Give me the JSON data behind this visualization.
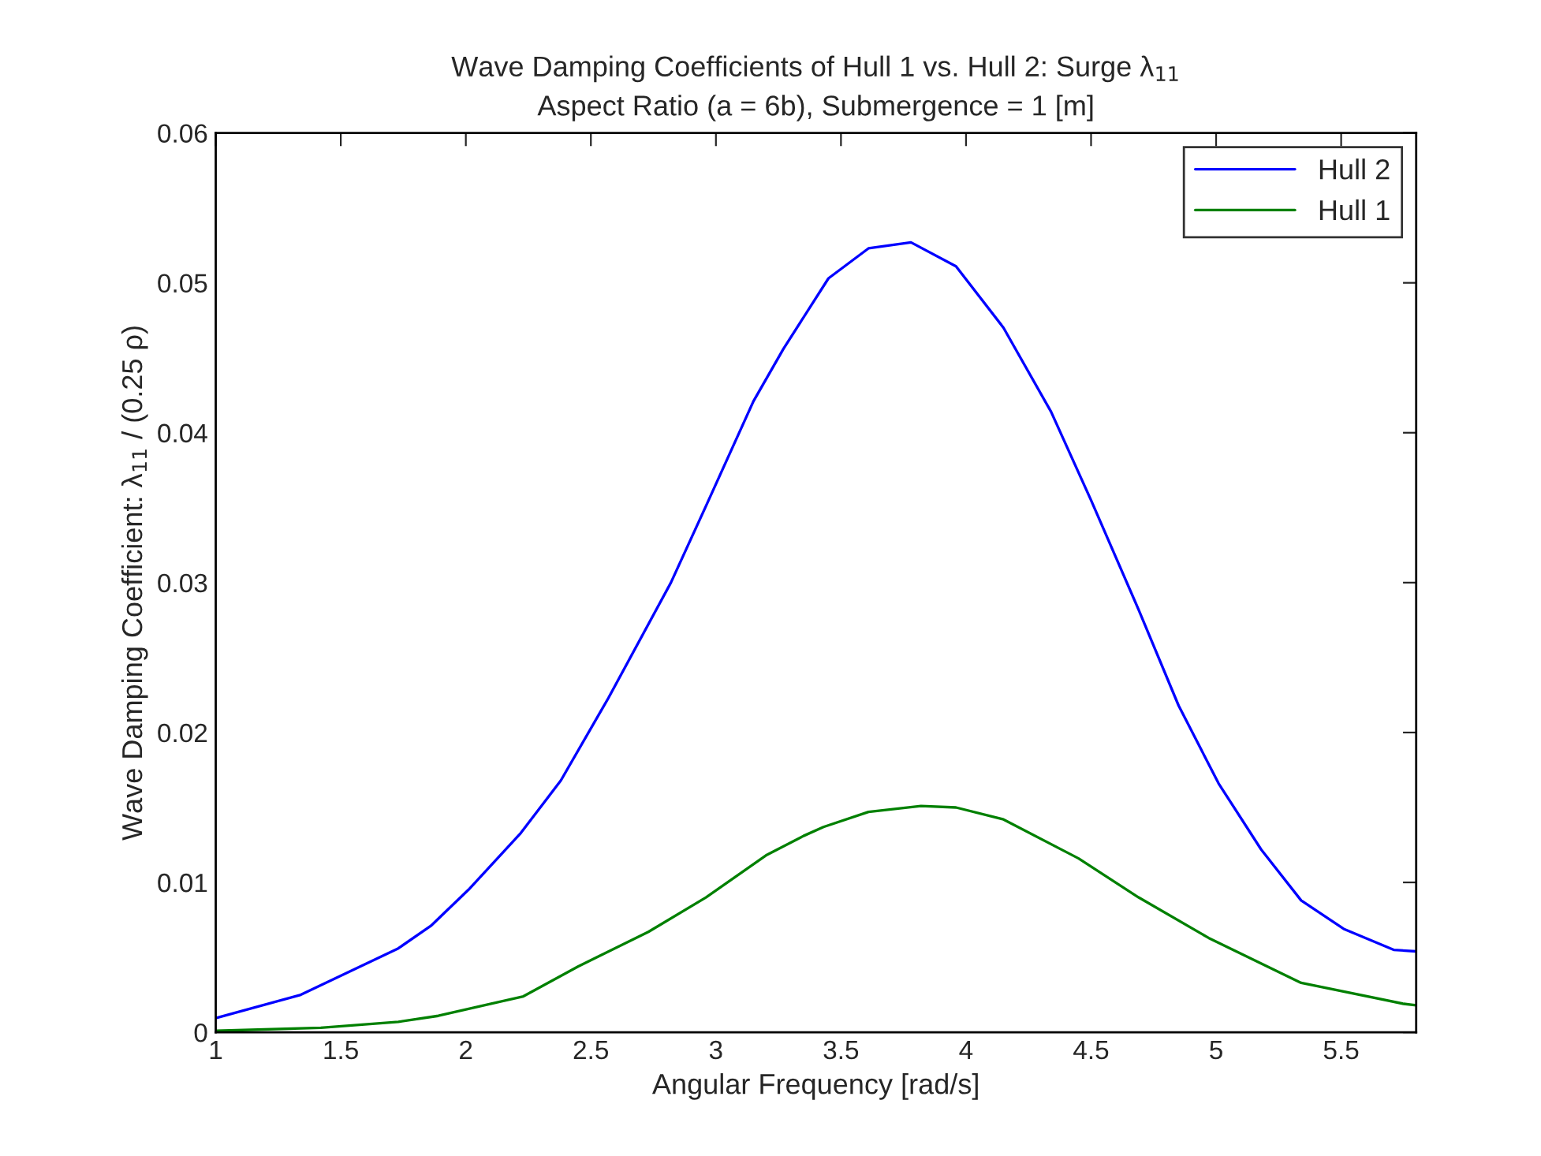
{
  "chart_data": {
    "type": "line",
    "title": "Wave Damping Coefficients of Hull 1 vs. Hull 2: Surge λ$_{11}$",
    "subtitle": "Aspect Ratio (a = 6b), Submergence = 1 [m]",
    "xlabel": "Angular Frequency [rad/s]",
    "ylabel": "Wave Damping Coefficient: λ$_{11}$ / (0.25 ρ)",
    "xlim": [
      1,
      5.8
    ],
    "ylim": [
      0,
      0.06
    ],
    "xticks": [
      1,
      1.5,
      2,
      2.5,
      3,
      3.5,
      4,
      4.5,
      5,
      5.5
    ],
    "yticks": [
      0,
      0.01,
      0.02,
      0.03,
      0.04,
      0.05,
      0.06
    ],
    "grid": false,
    "legend": "top right",
    "marker": "none",
    "line_style": "solid",
    "series": [
      {
        "name": "Hull 2",
        "color": "#0000ff",
        "x": [
          1.0,
          1.34,
          1.73,
          1.86,
          2.01,
          2.22,
          2.38,
          2.57,
          2.82,
          2.96,
          3.15,
          3.27,
          3.45,
          3.61,
          3.78,
          3.96,
          4.15,
          4.34,
          4.5,
          4.69,
          4.85,
          5.01,
          5.18,
          5.34,
          5.51,
          5.71,
          5.8
        ],
        "values": [
          0.00095,
          0.0025,
          0.0056,
          0.0071,
          0.0095,
          0.0133,
          0.0168,
          0.0223,
          0.03,
          0.0351,
          0.0421,
          0.0456,
          0.0503,
          0.0523,
          0.0527,
          0.0511,
          0.047,
          0.0414,
          0.0355,
          0.0282,
          0.0218,
          0.0166,
          0.0122,
          0.0088,
          0.0069,
          0.0055,
          0.0054
        ]
      },
      {
        "name": "Hull 1",
        "color": "#008000",
        "x": [
          1.0,
          1.42,
          1.73,
          1.89,
          2.23,
          2.45,
          2.73,
          2.96,
          3.2,
          3.35,
          3.43,
          3.61,
          3.82,
          3.96,
          4.15,
          4.45,
          4.69,
          4.97,
          5.34,
          5.75,
          5.8
        ],
        "values": [
          0.0001,
          0.0003,
          0.0007,
          0.0011,
          0.0024,
          0.0044,
          0.0067,
          0.009,
          0.0118,
          0.0131,
          0.0137,
          0.0147,
          0.0151,
          0.015,
          0.0142,
          0.0116,
          0.009,
          0.0063,
          0.0033,
          0.0019,
          0.0018
        ]
      }
    ]
  }
}
